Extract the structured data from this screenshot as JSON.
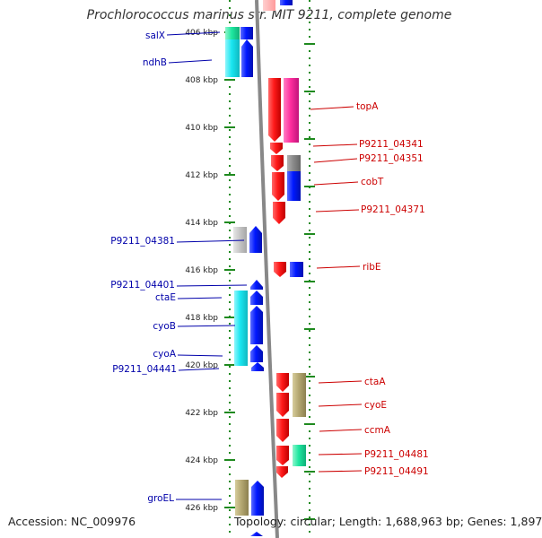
{
  "title": "Prochlorococcus marinus str. MIT 9211, complete genome",
  "footer": {
    "accession": "Accession: NC_009976",
    "topology": "Topology: circular; Length: 1,688,963 bp; Genes: 1,897"
  },
  "colors": {
    "reverse_label": "#0000aa",
    "forward_label": "#cc0000",
    "ruler_ticks": "#3a8f3a",
    "backbone": "#888888",
    "blue": "#0018ff",
    "cyan": "#19e6f0",
    "red": "#ff1a1a",
    "magenta": "#ff2f9e",
    "grey": "#8a8a8a",
    "light_grey": "#c8c8c8",
    "khaki": "#b5a872",
    "green_cyan": "#1ee8a0"
  },
  "scale_labels": [
    "406 kbp",
    "408 kbp",
    "410 kbp",
    "412 kbp",
    "414 kbp",
    "416 kbp",
    "418 kbp",
    "420 kbp",
    "422 kbp",
    "424 kbp",
    "426 kbp"
  ],
  "scale_kbp": [
    406,
    408,
    410,
    412,
    414,
    416,
    418,
    420,
    422,
    424,
    426
  ],
  "reverse_labels": [
    "salX",
    "ndhB",
    "P9211_04381",
    "P9211_04401",
    "ctaE",
    "cyoB",
    "cyoA",
    "P9211_04441",
    "groEL"
  ],
  "forward_labels": [
    "topA",
    "P9211_04341",
    "P9211_04351",
    "cobT",
    "P9211_04371",
    "ribE",
    "ctaA",
    "cyoE",
    "ccmA",
    "P9211_04481",
    "P9211_04491"
  ]
}
